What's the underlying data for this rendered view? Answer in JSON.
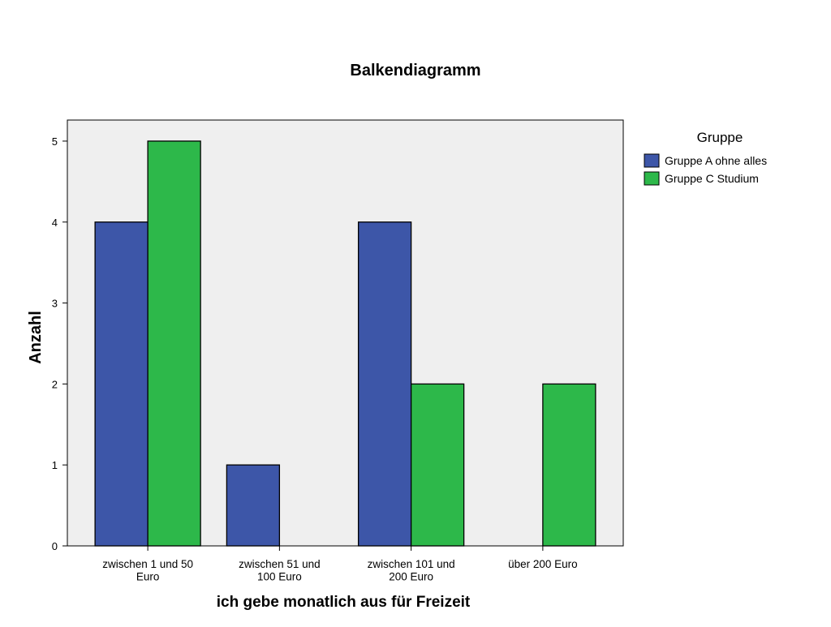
{
  "chart_data": {
    "type": "grouped_bar",
    "title": "Balkendiagramm",
    "x_label": "ich gebe monatlich aus für Freizeit",
    "y_label": "Anzahl",
    "categories": [
      "zwischen 1 und 50\nEuro",
      "zwischen 51 und\n100 Euro",
      "zwischen 101 und\n200 Euro",
      "über 200 Euro"
    ],
    "series": [
      {
        "name": "Gruppe A ohne alles",
        "color": "#3d56a8",
        "values": [
          4,
          1,
          4,
          null
        ]
      },
      {
        "name": "Gruppe C Studium",
        "color": "#2db84a",
        "values": [
          5,
          null,
          2,
          2
        ]
      }
    ],
    "ylim": [
      0,
      5.26
    ],
    "yticks": [
      0,
      1,
      2,
      3,
      4,
      5
    ],
    "legend_title": "Gruppe",
    "legend_position": "right",
    "plot_background": "#efefef"
  }
}
